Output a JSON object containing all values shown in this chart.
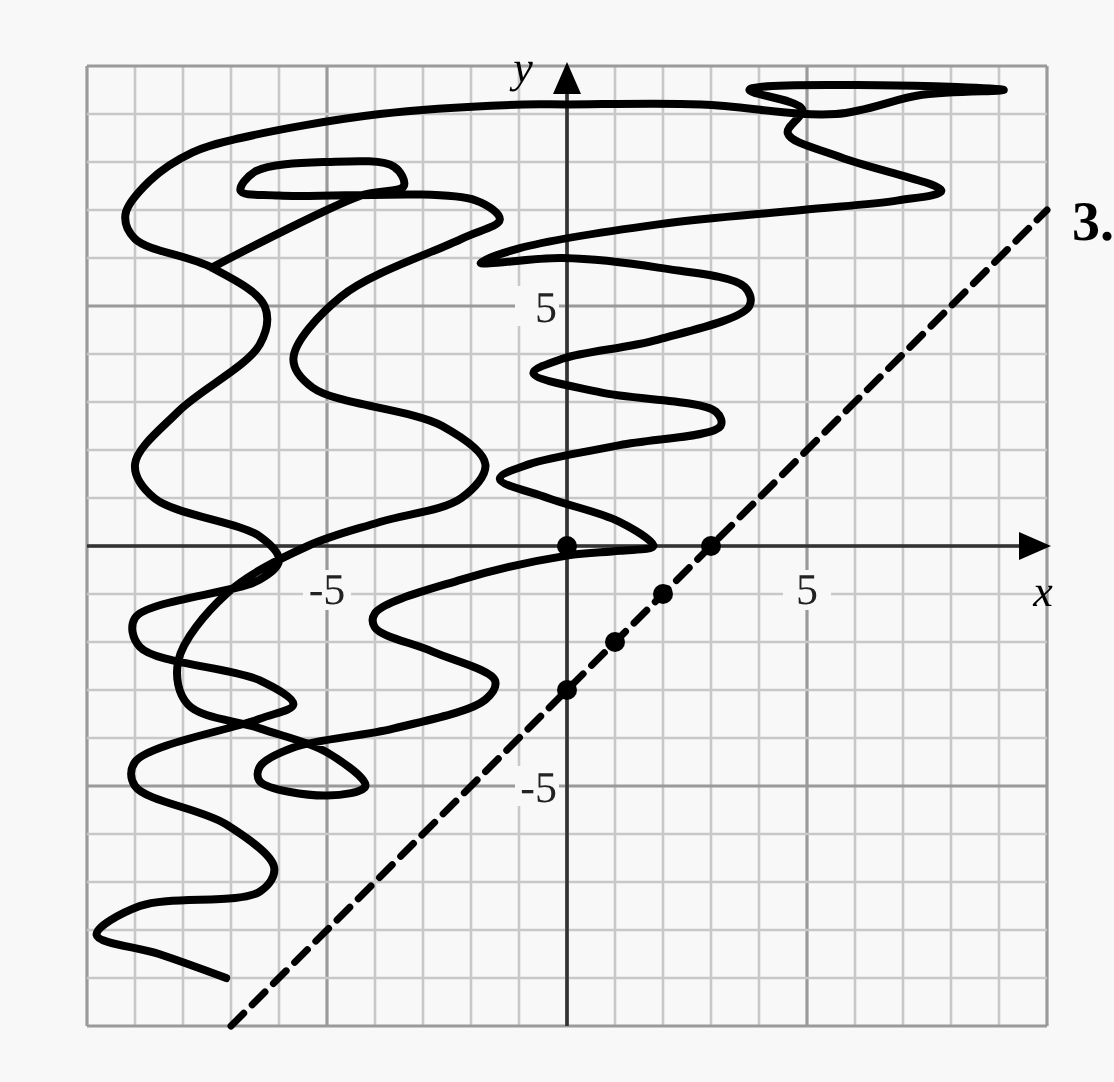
{
  "chart_data": {
    "type": "line",
    "xlabel": "x",
    "ylabel": "y",
    "xlim": [
      -10,
      10
    ],
    "ylim": [
      -10,
      10
    ],
    "xticks": [
      {
        "value": -10,
        "label": null
      },
      {
        "value": -9,
        "label": null
      },
      {
        "value": -8,
        "label": null
      },
      {
        "value": -7,
        "label": null
      },
      {
        "value": -6,
        "label": null
      },
      {
        "value": -5,
        "label": "-5"
      },
      {
        "value": -4,
        "label": null
      },
      {
        "value": -3,
        "label": null
      },
      {
        "value": -2,
        "label": null
      },
      {
        "value": -1,
        "label": null
      },
      {
        "value": 0,
        "label": null
      },
      {
        "value": 1,
        "label": null
      },
      {
        "value": 2,
        "label": null
      },
      {
        "value": 3,
        "label": null
      },
      {
        "value": 4,
        "label": null
      },
      {
        "value": 5,
        "label": "5"
      },
      {
        "value": 6,
        "label": null
      },
      {
        "value": 7,
        "label": null
      },
      {
        "value": 8,
        "label": null
      },
      {
        "value": 9,
        "label": null
      },
      {
        "value": 10,
        "label": null
      }
    ],
    "yticks": [
      {
        "value": -10,
        "label": null
      },
      {
        "value": -9,
        "label": null
      },
      {
        "value": -8,
        "label": null
      },
      {
        "value": -7,
        "label": null
      },
      {
        "value": -6,
        "label": null
      },
      {
        "value": -5,
        "label": "-5"
      },
      {
        "value": -4,
        "label": null
      },
      {
        "value": -3,
        "label": null
      },
      {
        "value": -2,
        "label": null
      },
      {
        "value": -1,
        "label": null
      },
      {
        "value": 0,
        "label": null
      },
      {
        "value": 1,
        "label": null
      },
      {
        "value": 2,
        "label": null
      },
      {
        "value": 3,
        "label": null
      },
      {
        "value": 4,
        "label": null
      },
      {
        "value": 5,
        "label": "5"
      },
      {
        "value": 6,
        "label": null
      },
      {
        "value": 7,
        "label": null
      },
      {
        "value": 8,
        "label": null
      },
      {
        "value": 9,
        "label": null
      },
      {
        "value": 10,
        "label": null
      }
    ],
    "grid": true,
    "annotations": [
      "3."
    ],
    "series": [
      {
        "color": "#000000",
        "line_style": "solid",
        "x": [
          -7.1,
          -8.5,
          -9.8,
          -8.9,
          -6.4,
          -6.1,
          -7.1,
          -9.0,
          -9.0,
          -6.4,
          -5.7,
          -6.4,
          -8.9,
          -9.0,
          -6.4,
          -6.0,
          -6.4,
          -8.6,
          -9.0,
          -8.1,
          -6.4,
          -6.3,
          -7.4,
          -9.0,
          -9.2,
          -8.7,
          -7.8,
          -6.8,
          -3.9,
          -0.9,
          0,
          2.8,
          5.6,
          7.4,
          9.1,
          6.5,
          3.8,
          4.9,
          4.6,
          5.7,
          7.8,
          6.9,
          4.9,
          1.9,
          -1.0,
          -1.8,
          -0.1,
          1.9,
          3.7,
          3.8,
          1.9,
          -0.1,
          -0.7,
          0.7,
          3.1,
          3.2,
          1.1,
          -0.8,
          -1.4,
          -0.4,
          1.1,
          1.8,
          1.1,
          0,
          -2.2,
          -4.0,
          -4.0,
          -2.8,
          -1.5,
          -1.7,
          -3.6,
          -5.7,
          -6.4,
          -6.4,
          -5.0,
          -4.2,
          -5.0,
          -6.4,
          -7.9,
          -8.1,
          -7.1,
          -5.4,
          -3.9,
          -2.2,
          -1.7,
          -2.6,
          -5.3,
          -5.7,
          -4.7,
          -2.2,
          -1.4,
          -1.9,
          -6.0,
          -6.8,
          -6.5,
          -5.0,
          -3.6,
          -3.4,
          -4.3,
          -7.4
        ],
        "values": [
          -9.0,
          -8.5,
          -8.1,
          -7.5,
          -7.2,
          -6.7,
          -5.8,
          -5.0,
          -4.5,
          -3.6,
          -3.3,
          -2.8,
          -2.1,
          -1.5,
          -0.7,
          -0.3,
          0.2,
          1.0,
          1.7,
          2.8,
          4.2,
          5.0,
          5.8,
          6.4,
          6.9,
          7.6,
          8.2,
          8.5,
          9.0,
          9.2,
          9.2,
          9.2,
          9.0,
          9.4,
          9.5,
          9.6,
          9.5,
          9.1,
          8.6,
          8.1,
          7.4,
          7.2,
          7.0,
          6.7,
          6.2,
          5.9,
          6.0,
          5.8,
          5.4,
          5.0,
          4.3,
          3.9,
          3.6,
          3.2,
          2.8,
          2.5,
          2.1,
          1.7,
          1.4,
          1.0,
          0.5,
          0.0,
          -0.1,
          -0.2,
          -0.7,
          -1.4,
          -1.7,
          -2.2,
          -2.8,
          -3.2,
          -3.8,
          -4.2,
          -4.6,
          -4.9,
          -5.2,
          -5.0,
          -4.3,
          -3.8,
          -3.3,
          -2.4,
          -1.0,
          0.0,
          0.5,
          1.0,
          1.7,
          2.5,
          3.3,
          3.9,
          5.2,
          6.4,
          6.8,
          7.2,
          7.3,
          7.4,
          7.8,
          8.0,
          7.9,
          7.5,
          7.3,
          5.8
        ]
      },
      {
        "color": "#000000",
        "line_style": "dashed",
        "x": [
          -7,
          10
        ],
        "values": [
          -10,
          7
        ]
      },
      {
        "type": "scatter",
        "color": "#000000",
        "marker": "circle",
        "x": [
          0,
          0,
          1,
          2,
          3
        ],
        "values": [
          0,
          -3,
          -2,
          -1,
          0
        ]
      }
    ]
  }
}
